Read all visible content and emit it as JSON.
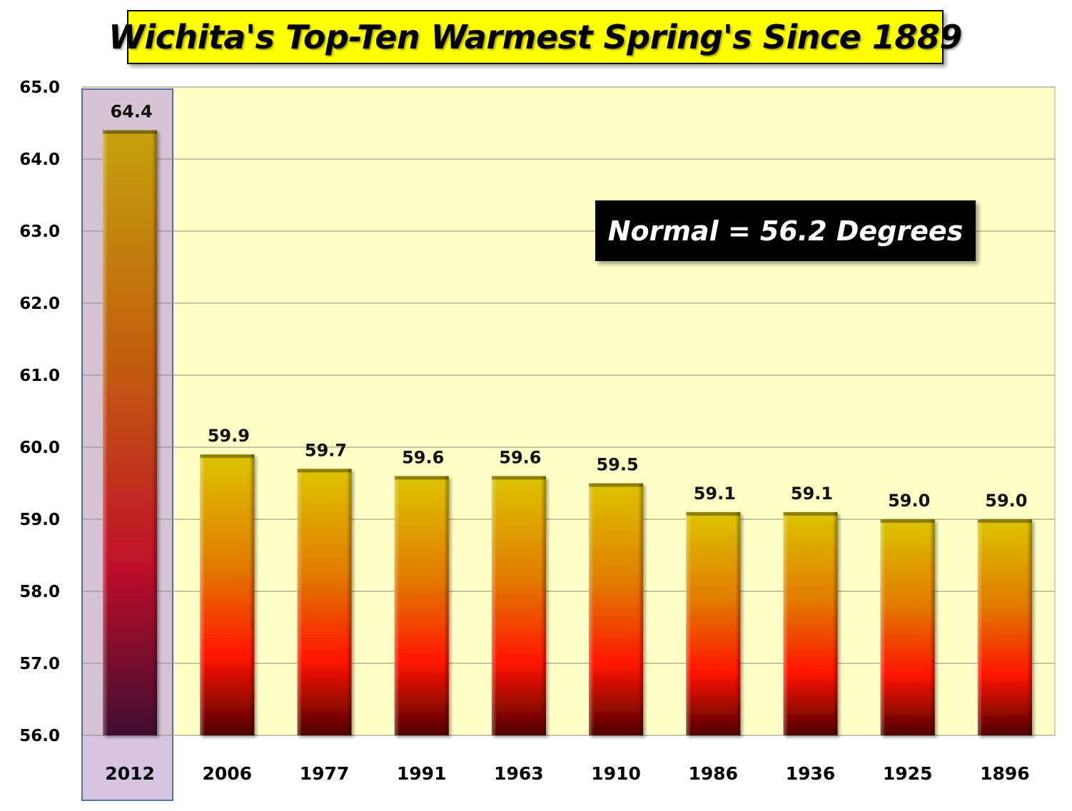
{
  "chart_data": {
    "type": "bar",
    "title": "Wichita's Top-Ten Warmest Spring's Since 1889",
    "annotation": "Normal = 56.2 Degrees",
    "categories": [
      "2012",
      "2006",
      "1977",
      "1991",
      "1963",
      "1910",
      "1986",
      "1936",
      "1925",
      "1896"
    ],
    "values": [
      64.4,
      59.9,
      59.7,
      59.6,
      59.6,
      59.5,
      59.1,
      59.1,
      59.0,
      59.0
    ],
    "data_labels": [
      "64.4",
      "59.9",
      "59.7",
      "59.6",
      "59.6",
      "59.5",
      "59.1",
      "59.1",
      "59.0",
      "59.0"
    ],
    "y_ticks": [
      "56.0",
      "57.0",
      "58.0",
      "59.0",
      "60.0",
      "61.0",
      "62.0",
      "63.0",
      "64.0",
      "65.0"
    ],
    "ylim": [
      56.0,
      65.0
    ],
    "xlabel": "",
    "ylabel": "",
    "grid": true,
    "highlighted_category": "2012",
    "colors": {
      "plot_background": "#ffffc6",
      "bar_top": "#d8c000",
      "bar_mid": "#ff2000",
      "bar_bottom": "#5a0000",
      "highlight_fill": "#c8b0d8",
      "highlight_border": "#5070a8",
      "annotation_background": "#000000",
      "title_background": "#ffff00"
    }
  }
}
